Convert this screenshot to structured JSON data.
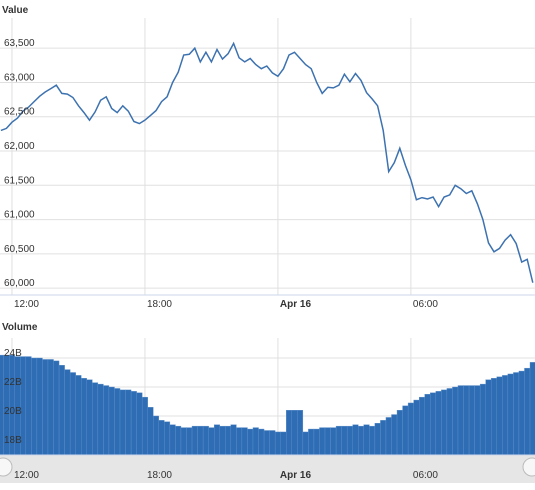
{
  "chart_data": [
    {
      "type": "line",
      "title": "Value",
      "color": "#3d72b0",
      "grid": true,
      "x": [
        11.5,
        11.75,
        12,
        12.25,
        12.5,
        12.75,
        13,
        13.25,
        13.5,
        13.75,
        14,
        14.25,
        14.5,
        14.75,
        15,
        15.25,
        15.5,
        15.75,
        16,
        16.25,
        16.5,
        16.75,
        17,
        17.25,
        17.5,
        17.75,
        18,
        18.25,
        18.5,
        18.75,
        19,
        19.25,
        19.5,
        19.75,
        20,
        20.25,
        20.5,
        20.75,
        21,
        21.25,
        21.5,
        21.75,
        22,
        22.25,
        22.5,
        22.75,
        23,
        23.25,
        23.5,
        23.75,
        24,
        24.25,
        24.5,
        24.75,
        25,
        25.25,
        25.5,
        25.75,
        26,
        26.25,
        26.5,
        26.75,
        27,
        27.25,
        27.5,
        27.75,
        28,
        28.25,
        28.5,
        28.75,
        29,
        29.25,
        29.5,
        29.75,
        30,
        30.25,
        30.5,
        30.75,
        31,
        31.25,
        31.5,
        31.75,
        32,
        32.25,
        32.5,
        32.75,
        33,
        33.25,
        33.5,
        33.75,
        34,
        34.25,
        34.5,
        34.75,
        35,
        35.25,
        35.5
      ],
      "values": [
        62300,
        62330,
        62420,
        62480,
        62580,
        62640,
        62720,
        62800,
        62860,
        62910,
        62960,
        62840,
        62830,
        62780,
        62660,
        62560,
        62450,
        62570,
        62740,
        62790,
        62620,
        62560,
        62660,
        62580,
        62430,
        62400,
        62450,
        62520,
        62590,
        62720,
        62790,
        63000,
        63150,
        63400,
        63410,
        63500,
        63300,
        63440,
        63300,
        63480,
        63340,
        63420,
        63570,
        63360,
        63300,
        63350,
        63260,
        63200,
        63240,
        63140,
        63090,
        63200,
        63400,
        63440,
        63350,
        63260,
        63200,
        63000,
        62840,
        62930,
        62920,
        62960,
        63120,
        63010,
        63130,
        63030,
        62850,
        62760,
        62660,
        62300,
        61700,
        61830,
        62040,
        61790,
        61580,
        61290,
        61320,
        61300,
        61330,
        61190,
        61330,
        61360,
        61500,
        61450,
        61380,
        61420,
        61230,
        61000,
        60660,
        60530,
        60580,
        60700,
        60780,
        60650,
        60380,
        60420,
        60080
      ],
      "xlim": [
        11.46,
        35.6
      ],
      "xticks": [
        {
          "value": 12,
          "label": "12:00"
        },
        {
          "value": 18,
          "label": "18:00"
        },
        {
          "value": 24,
          "label": "Apr 16"
        },
        {
          "value": 30,
          "label": "06:00"
        }
      ],
      "ylim": [
        59900,
        63940
      ],
      "yticks": [
        {
          "value": 60000,
          "label": "60,000"
        },
        {
          "value": 60500,
          "label": "60,500"
        },
        {
          "value": 61000,
          "label": "61,000"
        },
        {
          "value": 61500,
          "label": "61,500"
        },
        {
          "value": 62000,
          "label": "62,000"
        },
        {
          "value": 62500,
          "label": "62,500"
        },
        {
          "value": 63000,
          "label": "63,000"
        },
        {
          "value": 63500,
          "label": "63,500"
        }
      ]
    },
    {
      "type": "bar",
      "title": "Volume",
      "color": "#2e6db4",
      "grid": true,
      "x": [
        11.5,
        11.75,
        12,
        12.25,
        12.5,
        12.75,
        13,
        13.25,
        13.5,
        13.75,
        14,
        14.25,
        14.5,
        14.75,
        15,
        15.25,
        15.5,
        15.75,
        16,
        16.25,
        16.5,
        16.75,
        17,
        17.25,
        17.5,
        17.75,
        18,
        18.25,
        18.5,
        18.75,
        19,
        19.25,
        19.5,
        19.75,
        20,
        20.25,
        20.5,
        20.75,
        21,
        21.25,
        21.5,
        21.75,
        22,
        22.25,
        22.5,
        22.75,
        23,
        23.25,
        23.5,
        23.75,
        24,
        24.25,
        24.5,
        24.75,
        25,
        25.25,
        25.5,
        25.75,
        26,
        26.25,
        26.5,
        26.75,
        27,
        27.25,
        27.5,
        27.75,
        28,
        28.25,
        28.5,
        28.75,
        29,
        29.25,
        29.5,
        29.75,
        30,
        30.25,
        30.5,
        30.75,
        31,
        31.25,
        31.5,
        31.75,
        32,
        32.25,
        32.5,
        32.75,
        33,
        33.25,
        33.5,
        33.75,
        34,
        34.25,
        34.5,
        34.75,
        35,
        35.25,
        35.5
      ],
      "values": [
        24.2,
        24.2,
        24.2,
        24.1,
        24.1,
        24.1,
        24.0,
        24.0,
        23.9,
        23.9,
        23.8,
        23.5,
        23.2,
        23.0,
        22.8,
        22.6,
        22.5,
        22.3,
        22.2,
        22.1,
        22.0,
        21.9,
        21.8,
        21.8,
        21.7,
        21.6,
        21.3,
        20.6,
        20.0,
        19.7,
        19.6,
        19.4,
        19.3,
        19.2,
        19.2,
        19.3,
        19.3,
        19.3,
        19.2,
        19.4,
        19.3,
        19.3,
        19.4,
        19.2,
        19.2,
        19.1,
        19.2,
        19.1,
        19.0,
        19.0,
        18.9,
        18.9,
        20.4,
        20.4,
        20.4,
        18.9,
        19.1,
        19.1,
        19.2,
        19.2,
        19.2,
        19.3,
        19.3,
        19.3,
        19.4,
        19.3,
        19.4,
        19.3,
        19.5,
        19.7,
        19.9,
        20.1,
        20.4,
        20.7,
        20.9,
        21.1,
        21.3,
        21.5,
        21.6,
        21.7,
        21.8,
        21.9,
        22.0,
        22.1,
        22.1,
        22.1,
        22.1,
        22.2,
        22.5,
        22.6,
        22.7,
        22.8,
        22.9,
        23.0,
        23.1,
        23.3,
        23.7
      ],
      "xlim": [
        11.46,
        35.6
      ],
      "xticks": [
        {
          "value": 12,
          "label": "12:00"
        },
        {
          "value": 18,
          "label": "18:00"
        },
        {
          "value": 24,
          "label": "Apr 16"
        },
        {
          "value": 30,
          "label": "06:00"
        }
      ],
      "ylim": [
        17.31,
        25.38
      ],
      "yticks": [
        {
          "value": 18,
          "label": "18B"
        },
        {
          "value": 20,
          "label": "20B"
        },
        {
          "value": 22,
          "label": "22B"
        },
        {
          "value": 24,
          "label": "24B"
        }
      ]
    }
  ]
}
